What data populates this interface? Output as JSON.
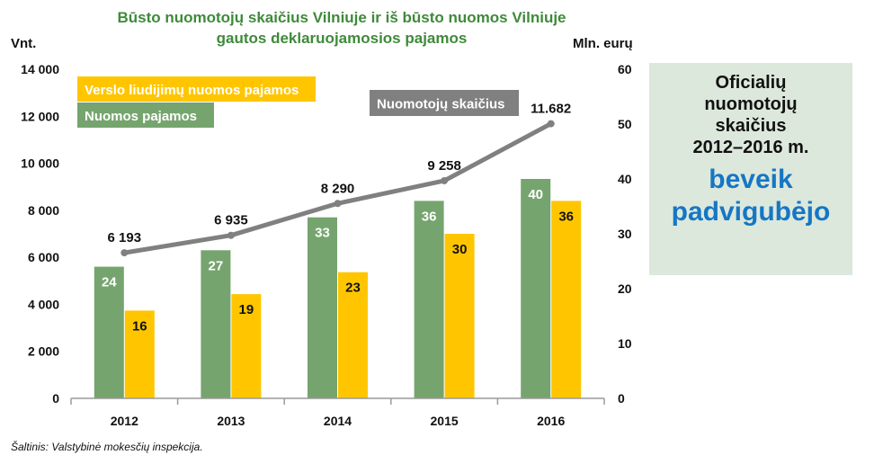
{
  "title_line1": "Būsto nuomotojų skaičius Vilniuje ir iš būsto nuomos Vilniuje",
  "title_line2": "gautos deklaruojamosios pajamos",
  "left_unit": "Vnt.",
  "right_unit": "Mln. eurų",
  "source": "Šaltinis: Valstybinė mokesčių inspekcija.",
  "side_box": {
    "line1": "Oficialių",
    "line2": "nuomotojų",
    "line3": "skaičius",
    "line4": "2012–2016 m.",
    "accent1": "beveik",
    "accent2": "padvigubėjo"
  },
  "colors": {
    "green": "#76a46e",
    "yellow": "#ffc600",
    "gray": "#808080",
    "title_green": "#3f8a3a",
    "accent_blue": "#1577c4",
    "side_bg": "#dde8dd"
  },
  "chart_data": {
    "type": "bar",
    "categories": [
      "2012",
      "2013",
      "2014",
      "2015",
      "2016"
    ],
    "series": [
      {
        "name": "Nuomos pajamos",
        "axis": "right",
        "type": "bar",
        "color": "#76a46e",
        "values": [
          24,
          27,
          33,
          36,
          40
        ],
        "labels": [
          "24",
          "27",
          "33",
          "36",
          "40"
        ]
      },
      {
        "name": "Verslo liudijimų nuomos pajamos",
        "axis": "right",
        "type": "bar",
        "color": "#ffc600",
        "values": [
          16,
          19,
          23,
          30,
          36
        ],
        "labels": [
          "16",
          "19",
          "23",
          "30",
          "36"
        ]
      },
      {
        "name": "Nuomotojų skaičius",
        "axis": "left",
        "type": "line",
        "color": "#808080",
        "values": [
          6193,
          6935,
          8290,
          9258,
          11682
        ],
        "labels": [
          "6 193",
          "6 935",
          "8 290",
          "9 258",
          "11.682"
        ]
      }
    ],
    "y_left": {
      "ylim": [
        0,
        14000
      ],
      "ticks": [
        "0",
        "2 000",
        "4 000",
        "6 000",
        "8 000",
        "10 000",
        "12 000",
        "14 000"
      ]
    },
    "y_right": {
      "ylim": [
        0,
        60
      ],
      "ticks": [
        "0",
        "10",
        "20",
        "30",
        "40",
        "50",
        "60"
      ]
    },
    "grid": false,
    "legend": "top-left"
  }
}
